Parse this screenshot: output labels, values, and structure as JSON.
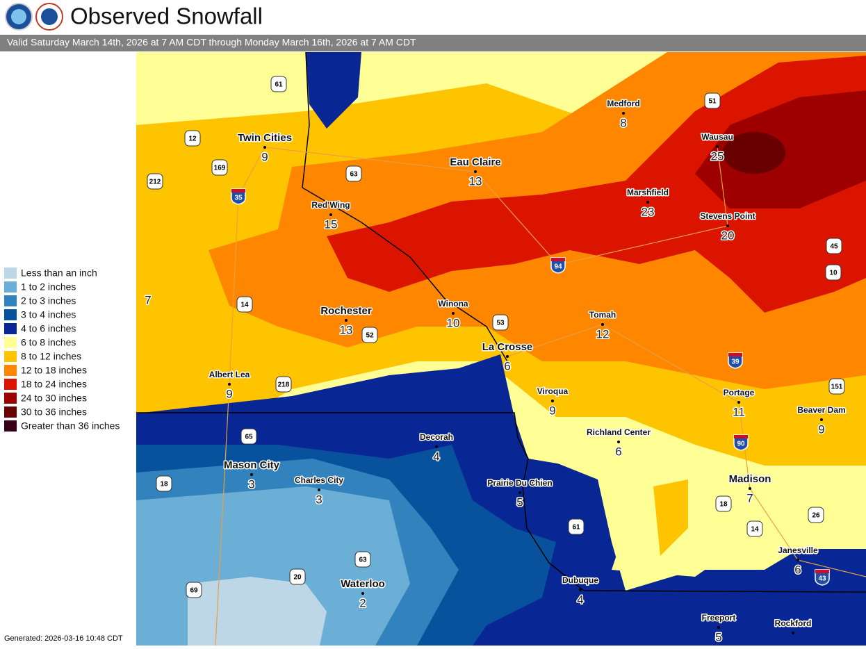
{
  "header": {
    "title": "Observed Snowfall",
    "subtitle": "Valid Saturday March 14th, 2026 at 7 AM CDT through Monday March 16th, 2026 at 7 AM CDT"
  },
  "legend": {
    "items": [
      {
        "label": "Less than an inch",
        "color": "#bdd7e7"
      },
      {
        "label": "1 to 2 inches",
        "color": "#6baed6"
      },
      {
        "label": "2 to 3 inches",
        "color": "#3182bd"
      },
      {
        "label": "3 to 4 inches",
        "color": "#08519c"
      },
      {
        "label": "4 to 6 inches",
        "color": "#082694"
      },
      {
        "label": "6 to 8 inches",
        "color": "#ffff96"
      },
      {
        "label": "8 to 12 inches",
        "color": "#ffc400"
      },
      {
        "label": "12 to 18 inches",
        "color": "#ff8700"
      },
      {
        "label": "18 to 24 inches",
        "color": "#db1400"
      },
      {
        "label": "24 to 30 inches",
        "color": "#9e0000"
      },
      {
        "label": "30 to 36 inches",
        "color": "#690000"
      },
      {
        "label": "Greater than 36 inches",
        "color": "#360016"
      }
    ]
  },
  "cities": [
    {
      "name": "Twin Cities",
      "value": 9,
      "major": true
    },
    {
      "name": "Medford",
      "value": 8
    },
    {
      "name": "Eau Claire",
      "value": 13,
      "major": true
    },
    {
      "name": "Wausau",
      "value": 25
    },
    {
      "name": "Marshfield",
      "value": 23
    },
    {
      "name": "Stevens Point",
      "value": 20
    },
    {
      "name": "Red Wing",
      "value": 15
    },
    {
      "name": "Rochester",
      "value": 13,
      "major": true
    },
    {
      "name": "Winona",
      "value": 10
    },
    {
      "name": "Tomah",
      "value": 12
    },
    {
      "name": "La Crosse",
      "value": 6,
      "major": true
    },
    {
      "name": "Albert Lea",
      "value": 9
    },
    {
      "name": "Viroqua",
      "value": 9
    },
    {
      "name": "Portage",
      "value": 11
    },
    {
      "name": "Beaver Dam",
      "value": 9
    },
    {
      "name": "Richland Center",
      "value": 6
    },
    {
      "name": "Decorah",
      "value": 4
    },
    {
      "name": "Mason City",
      "value": 3,
      "major": true
    },
    {
      "name": "Charles City",
      "value": 3
    },
    {
      "name": "Prairie Du Chien",
      "value": 5
    },
    {
      "name": "Madison",
      "value": 7,
      "major": true
    },
    {
      "name": "Janesville",
      "value": 6
    },
    {
      "name": "Waterloo",
      "value": 2,
      "major": true
    },
    {
      "name": "Dubuque",
      "value": 4
    },
    {
      "name": "Freeport",
      "value": 5
    },
    {
      "name": "Rockford"
    }
  ],
  "unnamed_values": [
    7
  ],
  "highways": [
    {
      "label": "61",
      "kind": "us"
    },
    {
      "label": "51",
      "kind": "us"
    },
    {
      "label": "12",
      "kind": "us"
    },
    {
      "label": "169",
      "kind": "us"
    },
    {
      "label": "212",
      "kind": "us"
    },
    {
      "label": "63",
      "kind": "us"
    },
    {
      "label": "14",
      "kind": "us"
    },
    {
      "label": "52",
      "kind": "us"
    },
    {
      "label": "53",
      "kind": "us"
    },
    {
      "label": "218",
      "kind": "us"
    },
    {
      "label": "65",
      "kind": "us"
    },
    {
      "label": "18",
      "kind": "us"
    },
    {
      "label": "151",
      "kind": "us"
    },
    {
      "label": "45",
      "kind": "us"
    },
    {
      "label": "10",
      "kind": "us"
    },
    {
      "label": "26",
      "kind": "us"
    },
    {
      "label": "18",
      "kind": "us"
    },
    {
      "label": "14",
      "kind": "us"
    },
    {
      "label": "61",
      "kind": "us"
    },
    {
      "label": "63",
      "kind": "us"
    },
    {
      "label": "20",
      "kind": "us"
    },
    {
      "label": "69",
      "kind": "us"
    },
    {
      "label": "35",
      "kind": "interstate"
    },
    {
      "label": "94",
      "kind": "interstate"
    },
    {
      "label": "39",
      "kind": "interstate"
    },
    {
      "label": "90",
      "kind": "interstate"
    },
    {
      "label": "43",
      "kind": "interstate"
    }
  ],
  "footer": {
    "generated": "Generated: 2026-03-16 10:48 CDT"
  }
}
